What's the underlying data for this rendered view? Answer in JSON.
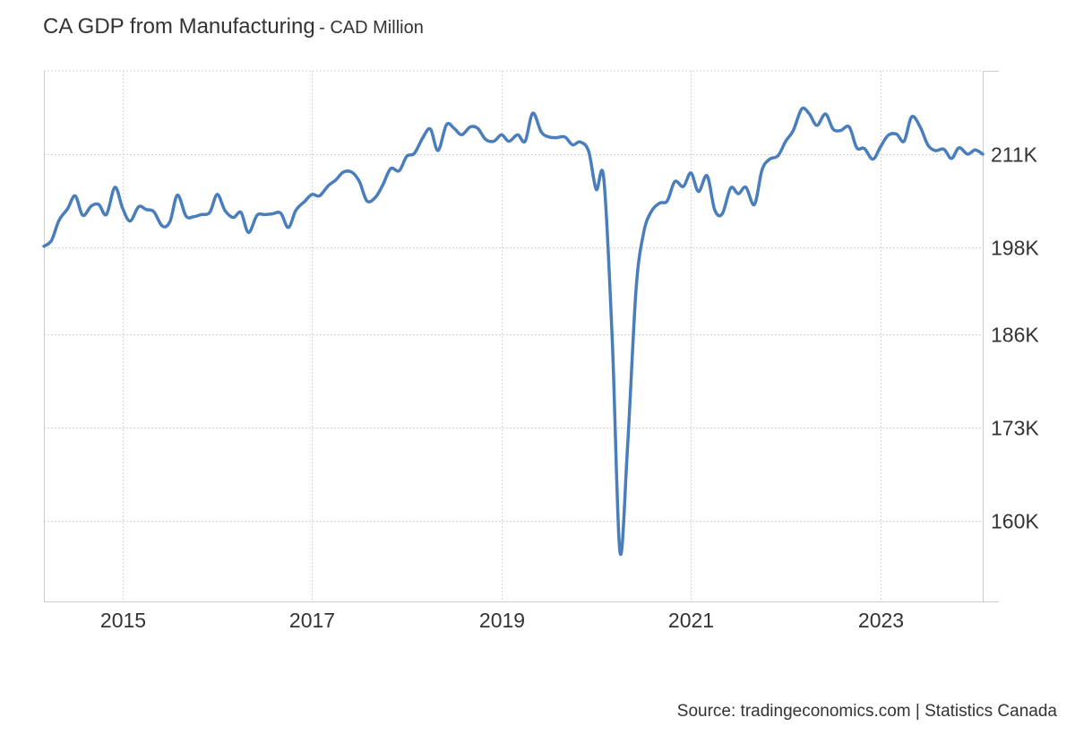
{
  "header": {
    "title": "CA GDP from Manufacturing",
    "subtitle": "- CAD Million"
  },
  "footer": {
    "source": "Source: tradingeconomics.com | Statistics Canada"
  },
  "colors": {
    "line": "#4a7ebb",
    "grid": "#d4d4d4",
    "axis": "#cccccc",
    "text": "#333333"
  },
  "chart_data": {
    "type": "line",
    "title": "CA GDP from Manufacturing",
    "subtitle": "- CAD Million",
    "xlabel": "",
    "ylabel": "",
    "x_ticks": [
      2015,
      2017,
      2019,
      2021,
      2023
    ],
    "x_tick_labels": [
      "2015",
      "2017",
      "2019",
      "2021",
      "2023"
    ],
    "y_ticks": [
      160000,
      173000,
      186000,
      198000,
      211000
    ],
    "y_tick_labels": [
      "160K",
      "173K",
      "186K",
      "198K",
      "211K"
    ],
    "xlim": [
      2014.17,
      2024.08
    ],
    "ylim": [
      148780,
      222600
    ],
    "grid": true,
    "y_axis_side": "right",
    "series": [
      {
        "values": [
          [
            2014.17,
            198200
          ],
          [
            2014.25,
            199000
          ],
          [
            2014.33,
            201800
          ],
          [
            2014.42,
            203400
          ],
          [
            2014.5,
            205200
          ],
          [
            2014.58,
            202500
          ],
          [
            2014.67,
            203800
          ],
          [
            2014.75,
            204000
          ],
          [
            2014.83,
            202600
          ],
          [
            2014.92,
            206400
          ],
          [
            2015.0,
            203500
          ],
          [
            2015.08,
            201700
          ],
          [
            2015.17,
            203700
          ],
          [
            2015.25,
            203300
          ],
          [
            2015.33,
            203000
          ],
          [
            2015.42,
            201000
          ],
          [
            2015.5,
            201600
          ],
          [
            2015.58,
            205300
          ],
          [
            2015.67,
            202400
          ],
          [
            2015.75,
            202300
          ],
          [
            2015.83,
            202600
          ],
          [
            2015.92,
            202900
          ],
          [
            2016.0,
            205400
          ],
          [
            2016.08,
            203200
          ],
          [
            2016.17,
            202200
          ],
          [
            2016.25,
            202900
          ],
          [
            2016.33,
            200100
          ],
          [
            2016.42,
            202500
          ],
          [
            2016.5,
            202600
          ],
          [
            2016.58,
            202700
          ],
          [
            2016.67,
            202800
          ],
          [
            2016.75,
            200800
          ],
          [
            2016.83,
            203200
          ],
          [
            2016.92,
            204400
          ],
          [
            2017.0,
            205400
          ],
          [
            2017.08,
            205200
          ],
          [
            2017.17,
            206600
          ],
          [
            2017.25,
            207400
          ],
          [
            2017.33,
            208500
          ],
          [
            2017.42,
            208500
          ],
          [
            2017.5,
            207200
          ],
          [
            2017.58,
            204500
          ],
          [
            2017.67,
            205000
          ],
          [
            2017.75,
            206800
          ],
          [
            2017.83,
            209000
          ],
          [
            2017.92,
            208700
          ],
          [
            2018.0,
            210700
          ],
          [
            2018.08,
            211100
          ],
          [
            2018.17,
            213300
          ],
          [
            2018.25,
            214500
          ],
          [
            2018.33,
            211500
          ],
          [
            2018.42,
            215100
          ],
          [
            2018.5,
            214600
          ],
          [
            2018.58,
            213700
          ],
          [
            2018.67,
            214800
          ],
          [
            2018.75,
            214600
          ],
          [
            2018.83,
            213100
          ],
          [
            2018.92,
            212800
          ],
          [
            2019.0,
            213700
          ],
          [
            2019.08,
            212800
          ],
          [
            2019.17,
            213700
          ],
          [
            2019.25,
            212800
          ],
          [
            2019.33,
            216700
          ],
          [
            2019.42,
            214100
          ],
          [
            2019.5,
            213400
          ],
          [
            2019.58,
            213300
          ],
          [
            2019.67,
            213400
          ],
          [
            2019.75,
            212300
          ],
          [
            2019.83,
            212700
          ],
          [
            2019.92,
            211400
          ],
          [
            2020.0,
            206100
          ],
          [
            2020.08,
            207600
          ],
          [
            2020.17,
            185000
          ],
          [
            2020.25,
            155700
          ],
          [
            2020.33,
            170000
          ],
          [
            2020.42,
            192000
          ],
          [
            2020.5,
            200000
          ],
          [
            2020.58,
            203000
          ],
          [
            2020.67,
            204200
          ],
          [
            2020.75,
            204500
          ],
          [
            2020.83,
            207200
          ],
          [
            2020.92,
            206500
          ],
          [
            2021.0,
            208400
          ],
          [
            2021.08,
            205800
          ],
          [
            2021.17,
            208000
          ],
          [
            2021.25,
            203300
          ],
          [
            2021.33,
            202700
          ],
          [
            2021.42,
            206300
          ],
          [
            2021.5,
            205500
          ],
          [
            2021.58,
            206400
          ],
          [
            2021.67,
            204000
          ],
          [
            2021.75,
            208800
          ],
          [
            2021.83,
            210300
          ],
          [
            2021.92,
            210800
          ],
          [
            2022.0,
            212800
          ],
          [
            2022.08,
            214300
          ],
          [
            2022.17,
            217300
          ],
          [
            2022.25,
            216600
          ],
          [
            2022.33,
            215000
          ],
          [
            2022.42,
            216600
          ],
          [
            2022.5,
            214500
          ],
          [
            2022.58,
            214300
          ],
          [
            2022.67,
            214800
          ],
          [
            2022.75,
            211900
          ],
          [
            2022.83,
            211800
          ],
          [
            2022.92,
            210300
          ],
          [
            2023.0,
            212000
          ],
          [
            2023.08,
            213600
          ],
          [
            2023.17,
            213800
          ],
          [
            2023.25,
            212800
          ],
          [
            2023.33,
            216200
          ],
          [
            2023.42,
            214800
          ],
          [
            2023.5,
            212300
          ],
          [
            2023.58,
            211500
          ],
          [
            2023.67,
            211700
          ],
          [
            2023.75,
            210400
          ],
          [
            2023.83,
            211900
          ],
          [
            2023.92,
            211000
          ],
          [
            2024.0,
            211600
          ],
          [
            2024.08,
            211000
          ]
        ]
      }
    ]
  }
}
